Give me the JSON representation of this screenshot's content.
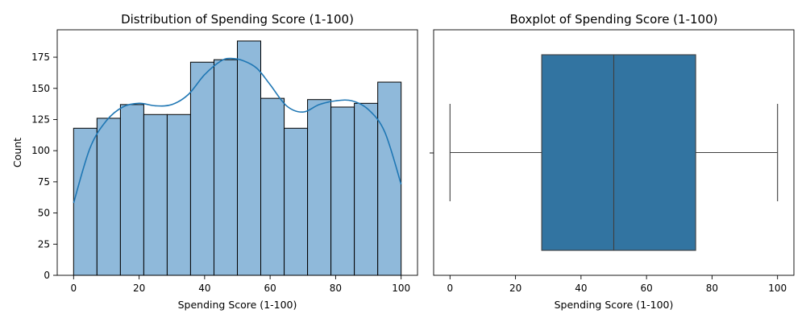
{
  "chart_data": [
    {
      "type": "histogram",
      "title": "Distribution of Spending Score (1-100)",
      "xlabel": "Spending Score (1-100)",
      "ylabel": "Count",
      "xlim": [
        -5,
        105
      ],
      "ylim": [
        0,
        197
      ],
      "xticks": [
        0,
        20,
        40,
        60,
        80,
        100
      ],
      "yticks": [
        0,
        25,
        50,
        75,
        100,
        125,
        150,
        175
      ],
      "bin_edges": [
        0,
        7.14,
        14.29,
        21.43,
        28.57,
        35.71,
        42.86,
        50,
        57.14,
        64.29,
        71.43,
        78.57,
        85.71,
        92.86,
        100
      ],
      "counts": [
        118,
        126,
        137,
        129,
        129,
        171,
        173,
        188,
        142,
        118,
        141,
        135,
        138,
        155
      ],
      "bar_color": "#8fb9da",
      "edge_color": "#000000",
      "kde": {
        "color": "#1f77b4",
        "x": [
          0,
          5,
          10,
          15,
          20,
          25,
          30,
          35,
          40,
          45,
          48,
          52,
          56,
          60,
          65,
          70,
          75,
          80,
          85,
          90,
          95,
          100
        ],
        "y": [
          58,
          102,
          124,
          135,
          138,
          136,
          137,
          145,
          161,
          172,
          174,
          172,
          166,
          153,
          136,
          131,
          137,
          140,
          140,
          133,
          115,
          73
        ]
      }
    },
    {
      "type": "boxplot",
      "title": "Boxplot of Spending Score (1-100)",
      "xlabel": "Spending Score (1-100)",
      "xlim": [
        -5,
        105
      ],
      "xticks": [
        0,
        20,
        40,
        60,
        80,
        100
      ],
      "min": 0,
      "q1": 28,
      "median": 50,
      "q3": 75,
      "max": 100,
      "box_color": "#3274a1",
      "line_color": "#3f3f3f"
    }
  ]
}
